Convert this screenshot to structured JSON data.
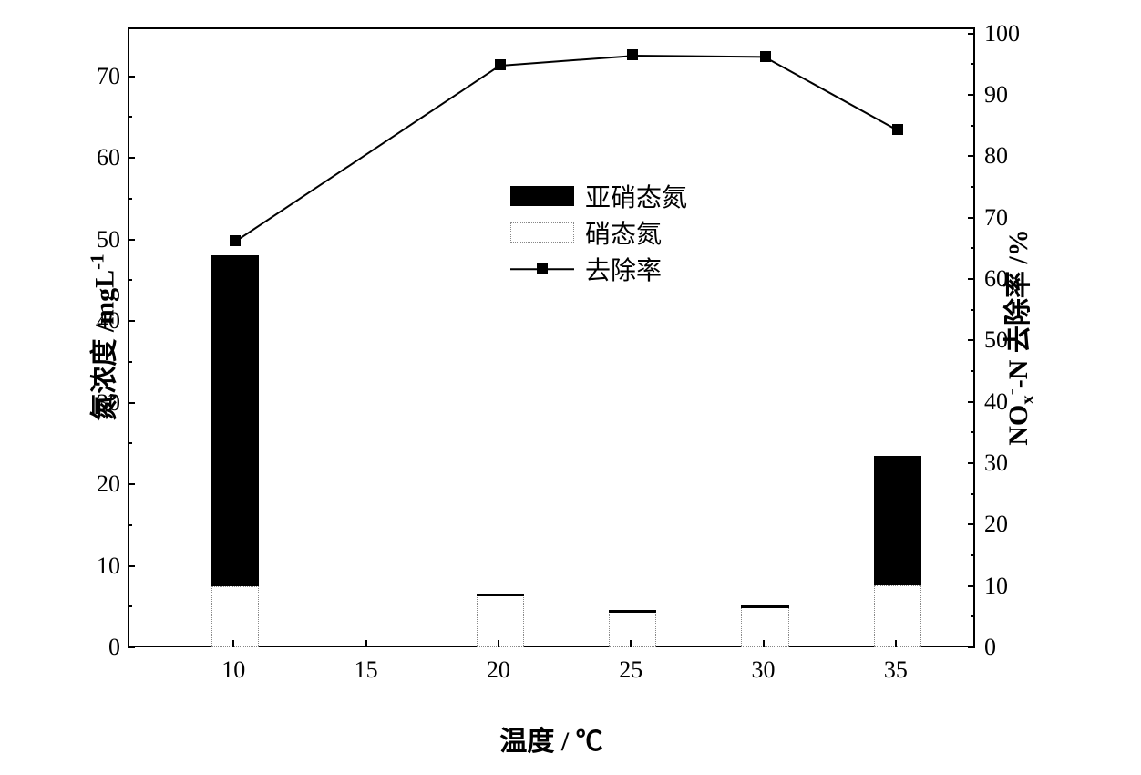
{
  "chart": {
    "type": "bar-line-dual-axis",
    "background_color": "#ffffff",
    "border_color": "#000000",
    "x_axis": {
      "label_prefix": "温度 / ",
      "unit": "℃",
      "ticks": [
        10,
        15,
        20,
        25,
        30,
        35
      ],
      "range_min": 6,
      "range_max": 38
    },
    "y1_axis": {
      "label_prefix": "氮浓度 /mgL",
      "label_sup": "-1",
      "ticks": [
        0,
        10,
        20,
        30,
        40,
        50,
        60,
        70
      ],
      "min": 0,
      "max": 76
    },
    "y2_axis": {
      "label_prefix": "NO",
      "label_sub": "x",
      "label_sup": "-",
      "label_mid": "-N 去除率 /",
      "label_suffix": "%",
      "ticks": [
        0,
        10,
        20,
        30,
        40,
        50,
        60,
        70,
        80,
        90,
        100
      ],
      "min": 0,
      "max": 101
    },
    "categories": [
      10,
      20,
      25,
      30,
      35
    ],
    "nitrate_values": [
      7.7,
      6.6,
      4.7,
      5.2,
      7.8
    ],
    "nitrite_values": [
      48.3,
      6.8,
      4.8,
      5.4,
      23.7
    ],
    "removal_rate": [
      66.5,
      95.2,
      96.8,
      96.6,
      84.7
    ],
    "bar_width_units": 1.8,
    "nitrate_color": "#ffffff",
    "nitrate_border": "#888888",
    "nitrite_color": "#000000",
    "line_color": "#000000",
    "marker_size": 12,
    "tick_fontsize": 26,
    "label_fontsize": 30,
    "legend": {
      "nitrite": "亚硝态氮",
      "nitrate": "硝态氮",
      "removal": "去除率"
    }
  }
}
